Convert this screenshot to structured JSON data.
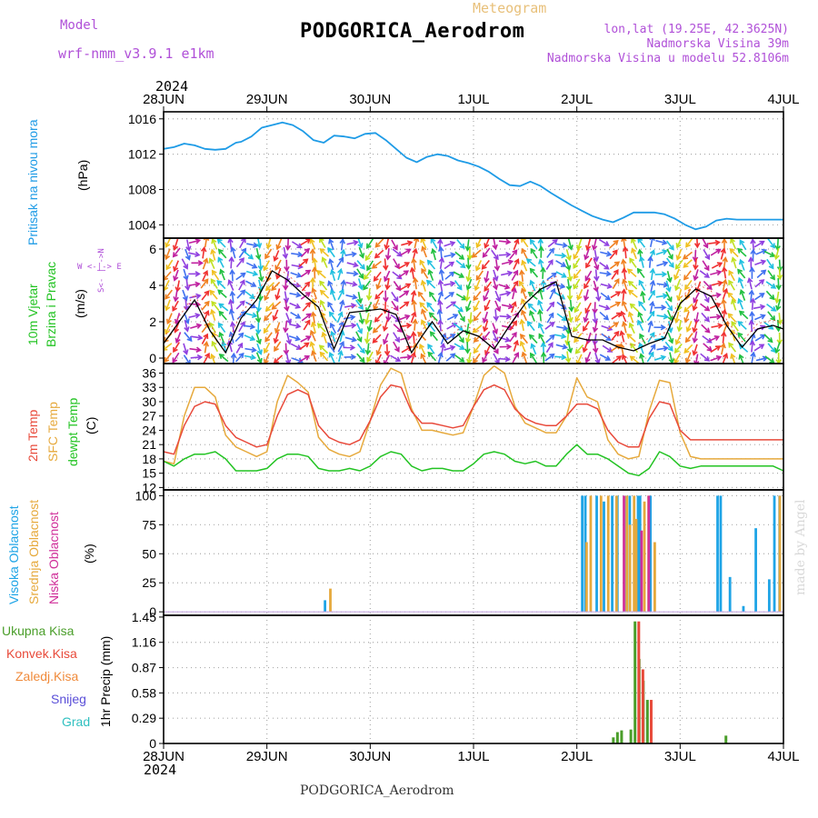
{
  "header": {
    "model_label": "Model",
    "model_name": "wrf-nmm_v3.9.1 e1km",
    "meteogram_label": "Meteogram",
    "station": "PODGORICA_Aerodrom",
    "lonlat": "lon,lat (19.25E, 42.3625N)",
    "elevation": "Nadmorska Visina 39m",
    "model_elevation": "Nadmorska Visina u modelu 52.8106m",
    "credit": "made by Angel",
    "footer_station": "PODGORICA_Aerodrom",
    "year_top": "2024",
    "year_bottom": "2024",
    "compass": {
      "n": "N",
      "w": "W",
      "e": "E",
      "s": "S"
    }
  },
  "colors": {
    "pressure": "#1e9be6",
    "temp2m": "#e8493a",
    "sfc_temp": "#e6a93c",
    "dewpt": "#22c322",
    "high_cloud": "#1ea4e6",
    "mid_cloud": "#e6a93c",
    "low_cloud": "#d0309a",
    "total_precip": "#4a9e2a",
    "conv_precip": "#e84a3a",
    "frozen_precip": "#f08a3a",
    "snow": "#5a4fd8",
    "graupel": "#30c0c0"
  },
  "chart_data": [
    {
      "type": "line",
      "id": "pressure",
      "ylabel": "Pritisak na nivou mora",
      "unit": "(hPa)",
      "x_ticks": [
        "28JUN",
        "29JUN",
        "30JUN",
        "1JUL",
        "2JUL",
        "3JUL",
        "4JUL"
      ],
      "yticks": [
        1004,
        1008,
        1012,
        1016
      ],
      "ylim": [
        1002.5,
        1016.8
      ],
      "x": [
        0,
        0.1,
        0.2,
        0.3,
        0.4,
        0.5,
        0.6,
        0.7,
        0.75,
        0.85,
        0.95,
        1.05,
        1.15,
        1.25,
        1.35,
        1.45,
        1.55,
        1.65,
        1.75,
        1.85,
        1.95,
        2.05,
        2.15,
        2.25,
        2.35,
        2.45,
        2.55,
        2.65,
        2.75,
        2.85,
        2.95,
        3.05,
        3.15,
        3.25,
        3.35,
        3.45,
        3.55,
        3.65,
        3.75,
        3.85,
        3.95,
        4.05,
        4.15,
        4.25,
        4.35,
        4.45,
        4.55,
        4.65,
        4.75,
        4.85,
        4.95,
        5.05,
        5.15,
        5.25,
        5.35,
        5.45,
        5.55,
        5.65,
        5.75,
        5.85,
        5.95,
        6.0
      ],
      "series": [
        {
          "values": [
            1012.6,
            1012.8,
            1013.2,
            1013.0,
            1012.6,
            1012.5,
            1012.6,
            1013.3,
            1013.4,
            1014.0,
            1015.0,
            1015.3,
            1015.6,
            1015.3,
            1014.6,
            1013.6,
            1013.3,
            1014.1,
            1014.0,
            1013.8,
            1014.3,
            1014.4,
            1013.6,
            1012.6,
            1011.6,
            1011.1,
            1011.7,
            1012.0,
            1011.8,
            1011.3,
            1011.0,
            1010.6,
            1010.0,
            1009.2,
            1008.5,
            1008.4,
            1008.9,
            1008.4,
            1007.6,
            1006.9,
            1006.2,
            1005.6,
            1005.0,
            1004.6,
            1004.3,
            1004.8,
            1005.4,
            1005.4,
            1005.4,
            1005.2,
            1004.7,
            1004.0,
            1003.5,
            1003.8,
            1004.5,
            1004.7,
            1004.6,
            1004.6,
            1004.6,
            1004.6,
            1004.6,
            1004.6
          ]
        }
      ]
    },
    {
      "type": "line",
      "id": "wind",
      "ylabel": "10m Vjetar Brzina i Pravac",
      "ylabel_line1": "10m Vjetar",
      "ylabel_line2": "Brzina i Pravac",
      "unit": "(m/s)",
      "yticks": [
        0,
        2,
        4,
        6
      ],
      "ylim": [
        -0.3,
        6.6
      ],
      "x": [
        0,
        0.15,
        0.3,
        0.45,
        0.6,
        0.75,
        0.9,
        1.05,
        1.2,
        1.35,
        1.5,
        1.65,
        1.8,
        1.95,
        2.1,
        2.25,
        2.4,
        2.5,
        2.6,
        2.75,
        2.9,
        3.05,
        3.2,
        3.35,
        3.5,
        3.65,
        3.8,
        3.95,
        4.1,
        4.25,
        4.4,
        4.55,
        4.7,
        4.85,
        5.0,
        5.15,
        5.3,
        5.45,
        5.6,
        5.75,
        5.9,
        6.0
      ],
      "series": [
        {
          "name": "speed",
          "values": [
            0.8,
            2.0,
            3.2,
            1.5,
            0.3,
            2.2,
            3.2,
            4.8,
            4.3,
            3.5,
            2.8,
            0.5,
            2.5,
            2.6,
            2.7,
            2.4,
            0.3,
            1.2,
            2.0,
            0.8,
            1.5,
            1.2,
            0.5,
            1.8,
            3.0,
            3.8,
            4.2,
            1.2,
            1.0,
            1.0,
            0.6,
            0.4,
            0.8,
            1.1,
            3.0,
            3.8,
            3.4,
            1.8,
            0.6,
            1.6,
            1.8,
            1.6
          ]
        }
      ],
      "arrow_hue_bands": [
        "#9040e0",
        "#4070f0",
        "#20c0e0",
        "#20c040",
        "#c0e020",
        "#f0c020",
        "#f08020",
        "#f03030",
        "#c020a0"
      ]
    },
    {
      "type": "line",
      "id": "temperature",
      "ylabel": "2m Temp / SFC Temp / dewpt Temp",
      "unit": "(C)",
      "yticks": [
        12,
        15,
        18,
        21,
        24,
        27,
        30,
        33,
        36
      ],
      "ylim": [
        11.5,
        38
      ],
      "x": [
        0,
        0.1,
        0.2,
        0.3,
        0.4,
        0.5,
        0.6,
        0.7,
        0.8,
        0.9,
        1.0,
        1.1,
        1.2,
        1.3,
        1.4,
        1.5,
        1.6,
        1.7,
        1.8,
        1.9,
        2.0,
        2.1,
        2.2,
        2.3,
        2.4,
        2.5,
        2.6,
        2.7,
        2.8,
        2.9,
        3.0,
        3.1,
        3.2,
        3.3,
        3.4,
        3.5,
        3.6,
        3.7,
        3.8,
        3.9,
        4.0,
        4.1,
        4.2,
        4.3,
        4.4,
        4.5,
        4.6,
        4.7,
        4.8,
        4.9,
        5.0,
        5.1,
        5.2,
        5.3,
        5.4,
        5.5,
        5.6,
        5.7,
        5.8,
        5.9,
        6.0
      ],
      "series": [
        {
          "name": "2m Temp",
          "values": [
            19.5,
            19.0,
            25.0,
            29.0,
            30.0,
            29.5,
            25.0,
            22.5,
            21.5,
            20.5,
            21.0,
            27.0,
            31.5,
            32.5,
            31.5,
            25.0,
            22.5,
            21.5,
            21.0,
            22.0,
            26.0,
            31.0,
            33.5,
            33.0,
            28.0,
            25.5,
            25.5,
            25.0,
            24.5,
            25.0,
            29.0,
            32.5,
            33.5,
            32.5,
            28.5,
            26.5,
            25.5,
            25.0,
            25.0,
            27.0,
            29.5,
            29.5,
            28.5,
            24.0,
            21.5,
            20.5,
            20.5,
            26.5,
            30.0,
            29.5,
            24.0,
            22.0,
            22.0,
            22.0,
            22.0,
            22.0,
            22.0,
            22.0,
            22.0,
            22.0,
            22.0
          ]
        },
        {
          "name": "SFC Temp",
          "values": [
            17.5,
            17.0,
            27.0,
            33.0,
            33.0,
            31.0,
            23.0,
            20.5,
            19.5,
            18.5,
            19.5,
            30.0,
            35.5,
            34.0,
            32.0,
            22.5,
            20.0,
            19.0,
            18.5,
            19.5,
            26.0,
            33.5,
            37.0,
            36.0,
            28.5,
            24.0,
            24.0,
            23.5,
            23.0,
            23.5,
            29.0,
            35.5,
            37.5,
            36.0,
            29.0,
            25.5,
            24.5,
            23.5,
            23.5,
            27.0,
            35.0,
            31.0,
            30.0,
            22.0,
            19.0,
            18.0,
            18.5,
            28.0,
            34.5,
            34.0,
            23.5,
            18.5,
            18.0,
            18.0,
            18.0,
            18.0,
            18.0,
            18.0,
            18.0,
            18.0,
            18.0
          ]
        },
        {
          "name": "dewpt Temp",
          "values": [
            17.5,
            16.5,
            18.0,
            19.0,
            19.0,
            19.5,
            18.0,
            15.5,
            15.5,
            15.5,
            16.0,
            18.0,
            19.0,
            19.0,
            18.5,
            16.0,
            15.5,
            15.5,
            16.0,
            15.5,
            16.5,
            18.5,
            19.5,
            19.0,
            16.5,
            15.5,
            16.0,
            16.0,
            15.5,
            15.5,
            17.0,
            19.0,
            19.5,
            19.0,
            17.5,
            17.0,
            17.5,
            16.5,
            16.5,
            19.0,
            21.0,
            19.0,
            19.0,
            18.0,
            16.5,
            15.0,
            14.5,
            16.0,
            19.5,
            18.5,
            16.5,
            16.0,
            16.5,
            16.5,
            16.5,
            16.5,
            16.5,
            16.5,
            16.5,
            16.5,
            15.5
          ]
        }
      ]
    },
    {
      "type": "bar",
      "id": "clouds",
      "ylabel": "Visoka Oblacnost / Srednja Oblacnost / Niska Oblacnost",
      "unit": "(%)",
      "yticks": [
        0,
        25,
        50,
        75,
        100
      ],
      "ylim": [
        -3,
        105
      ],
      "series": [
        {
          "name": "Visoka Oblacnost",
          "points": [
            [
              1.55,
              10
            ],
            [
              4.04,
              100
            ],
            [
              4.07,
              100
            ],
            [
              4.18,
              100
            ],
            [
              4.25,
              95
            ],
            [
              4.33,
              100
            ],
            [
              4.38,
              100
            ],
            [
              4.47,
              100
            ],
            [
              4.5,
              100
            ],
            [
              4.58,
              100
            ],
            [
              4.6,
              100
            ],
            [
              4.7,
              100
            ],
            [
              5.35,
              100
            ],
            [
              5.38,
              100
            ],
            [
              5.47,
              30
            ],
            [
              5.6,
              5
            ],
            [
              5.72,
              72
            ],
            [
              5.85,
              28
            ],
            [
              5.9,
              100
            ],
            [
              5.95,
              100
            ]
          ]
        },
        {
          "name": "Srednja Oblacnost",
          "points": [
            [
              1.58,
              20
            ],
            [
              4.06,
              60
            ],
            [
              4.1,
              100
            ],
            [
              4.2,
              100
            ],
            [
              4.27,
              100
            ],
            [
              4.35,
              100
            ],
            [
              4.45,
              100
            ],
            [
              4.48,
              75
            ],
            [
              4.52,
              100
            ],
            [
              4.54,
              80
            ],
            [
              4.62,
              95
            ],
            [
              4.66,
              100
            ],
            [
              4.72,
              60
            ],
            [
              5.93,
              100
            ]
          ]
        },
        {
          "name": "Niska Oblacnost",
          "points": [
            [
              4.4,
              100
            ],
            [
              4.57,
              70
            ],
            [
              4.64,
              100
            ]
          ]
        }
      ]
    },
    {
      "type": "bar",
      "id": "precip",
      "ylabel": "1hr Precip (mm)",
      "yticks": [
        0,
        0.29,
        0.58,
        0.87,
        1.16,
        1.45
      ],
      "ylim": [
        0,
        1.47
      ],
      "x_ticks": [
        "28JUN",
        "29JUN",
        "30JUN",
        "1JUL",
        "2JUL",
        "3JUL",
        "4JUL"
      ],
      "legend": [
        "Ukupna Kisa",
        "Konvek.Kisa",
        "Zaledj.Kisa",
        "Snijeg",
        "Grad"
      ],
      "series": [
        {
          "name": "Ukupna Kisa",
          "points": [
            [
              4.34,
              0.07
            ],
            [
              4.38,
              0.13
            ],
            [
              4.42,
              0.15
            ],
            [
              4.51,
              0.16
            ],
            [
              4.55,
              1.4
            ],
            [
              4.59,
              0.97
            ],
            [
              4.63,
              0.72
            ],
            [
              4.67,
              0.5
            ],
            [
              5.43,
              0.09
            ]
          ]
        },
        {
          "name": "Konvek.Kisa",
          "points": [
            [
              4.56,
              1.4
            ],
            [
              4.6,
              0.85
            ],
            [
              4.68,
              0.5
            ]
          ]
        }
      ]
    }
  ]
}
